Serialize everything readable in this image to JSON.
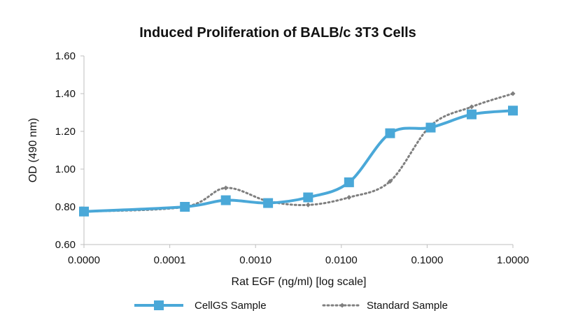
{
  "chart_data": {
    "type": "line",
    "title": "Induced Proliferation of BALB/c 3T3 Cells",
    "xlabel": "Rat EGF (ng/ml) [log scale]",
    "ylabel": "OD (490 nm)",
    "x_scale": "log",
    "x_tick_labels": [
      "0.0000",
      "0.0001",
      "0.0010",
      "0.0100",
      "0.1000",
      "1.0000"
    ],
    "y_tick_labels": [
      "0.60",
      "0.80",
      "1.00",
      "1.20",
      "1.40",
      "1.60"
    ],
    "ylim": [
      0.6,
      1.6
    ],
    "grid": false,
    "legend": "bottom",
    "series": [
      {
        "name": "CellGS Sample",
        "color": "#4aa8d8",
        "marker": "square",
        "line": "solid",
        "x": [
          1e-05,
          0.00015,
          0.00045,
          0.0014,
          0.0041,
          0.0123,
          0.037,
          0.11,
          0.33,
          1.0
        ],
        "y": [
          0.775,
          0.8,
          0.835,
          0.82,
          0.85,
          0.93,
          1.19,
          1.22,
          1.29,
          1.31
        ]
      },
      {
        "name": "Standard Sample",
        "color": "#7f7f7f",
        "marker": "diamond",
        "line": "dotted",
        "x": [
          1e-05,
          0.00015,
          0.00045,
          0.0014,
          0.0041,
          0.0123,
          0.037,
          0.11,
          0.33,
          1.0
        ],
        "y": [
          0.775,
          0.8,
          0.9,
          0.83,
          0.81,
          0.85,
          0.935,
          1.23,
          1.33,
          1.4
        ]
      }
    ]
  }
}
